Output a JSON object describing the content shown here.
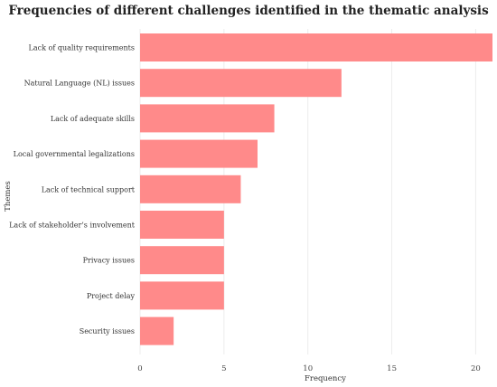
{
  "chart_data": {
    "type": "bar",
    "orientation": "horizontal",
    "title": "Frequencies of different challenges identified in the thematic analysis",
    "xlabel": "Frequency",
    "ylabel": "Themes",
    "categories": [
      "Lack of quality requirements",
      "Natural Language (NL) issues",
      "Lack of adequate skills",
      "Local governmental legalizations",
      "Lack of technical support",
      "Lack of stakeholder’s involvement",
      "Privacy issues",
      "Project delay",
      "Security issues"
    ],
    "values": [
      21,
      12,
      8,
      7,
      6,
      5,
      5,
      5,
      2
    ],
    "xlim": [
      0,
      21
    ],
    "xticks": [
      0,
      5,
      10,
      15,
      20
    ],
    "grid": true,
    "legend": "none",
    "bar_color": "#ff8a8a"
  }
}
